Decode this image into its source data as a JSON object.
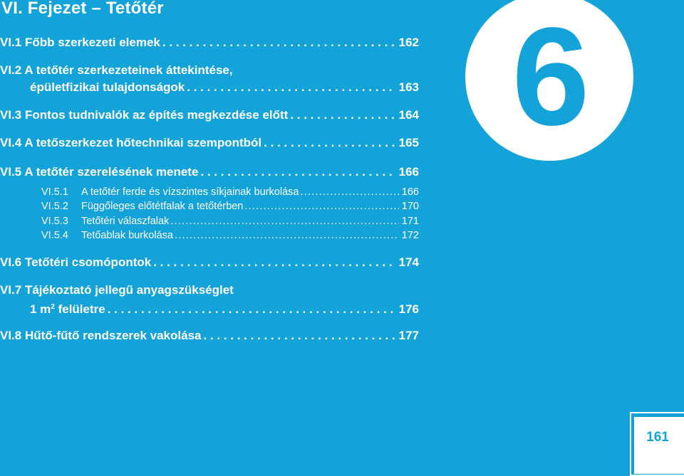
{
  "chapter_title": "VI. Fejezet – Tetőtér",
  "chapter_number": "6",
  "page_number": "161",
  "entries": [
    {
      "label": "VI.1 Főbb szerkezeti elemek",
      "page": "162"
    },
    {
      "label_line1": "VI.2 A tetőtér szerkezeteinek áttekintése,",
      "label": "épületfizikai tulajdonságok",
      "page": "163"
    },
    {
      "label": "VI.3 Fontos tudnivalók az építés megkezdése előtt",
      "page": "164"
    },
    {
      "label": "VI.4 A tetőszerkezet hőtechnikai szempontból",
      "page": "165"
    },
    {
      "label": "VI.5 A tetőtér szerelésének menete",
      "page": "166"
    },
    {
      "label": "VI.6 Tetőtéri csomópontok",
      "page": "174"
    },
    {
      "label_line1": "VI.7 Tájékoztató jellegű anyagszükséglet",
      "label": "1 m",
      "label_sup": "2",
      "label_tail": " felületre",
      "page": "176"
    },
    {
      "label": "VI.8 Hűtő-fűtő rendszerek vakolása",
      "page": "177"
    }
  ],
  "subentries": [
    {
      "code": "VI.5.1",
      "label": "A tetőtér ferde és vízszintes síkjainak burkolása",
      "page": "166"
    },
    {
      "code": "VI.5.2",
      "label": "Függőleges előtétfalak a tetőtérben",
      "page": "170"
    },
    {
      "code": "VI.5.3",
      "label": "Tetőtéri válaszfalak",
      "page": "171"
    },
    {
      "code": "VI.5.4",
      "label": "Tetőablak burkolása",
      "page": "172"
    }
  ]
}
